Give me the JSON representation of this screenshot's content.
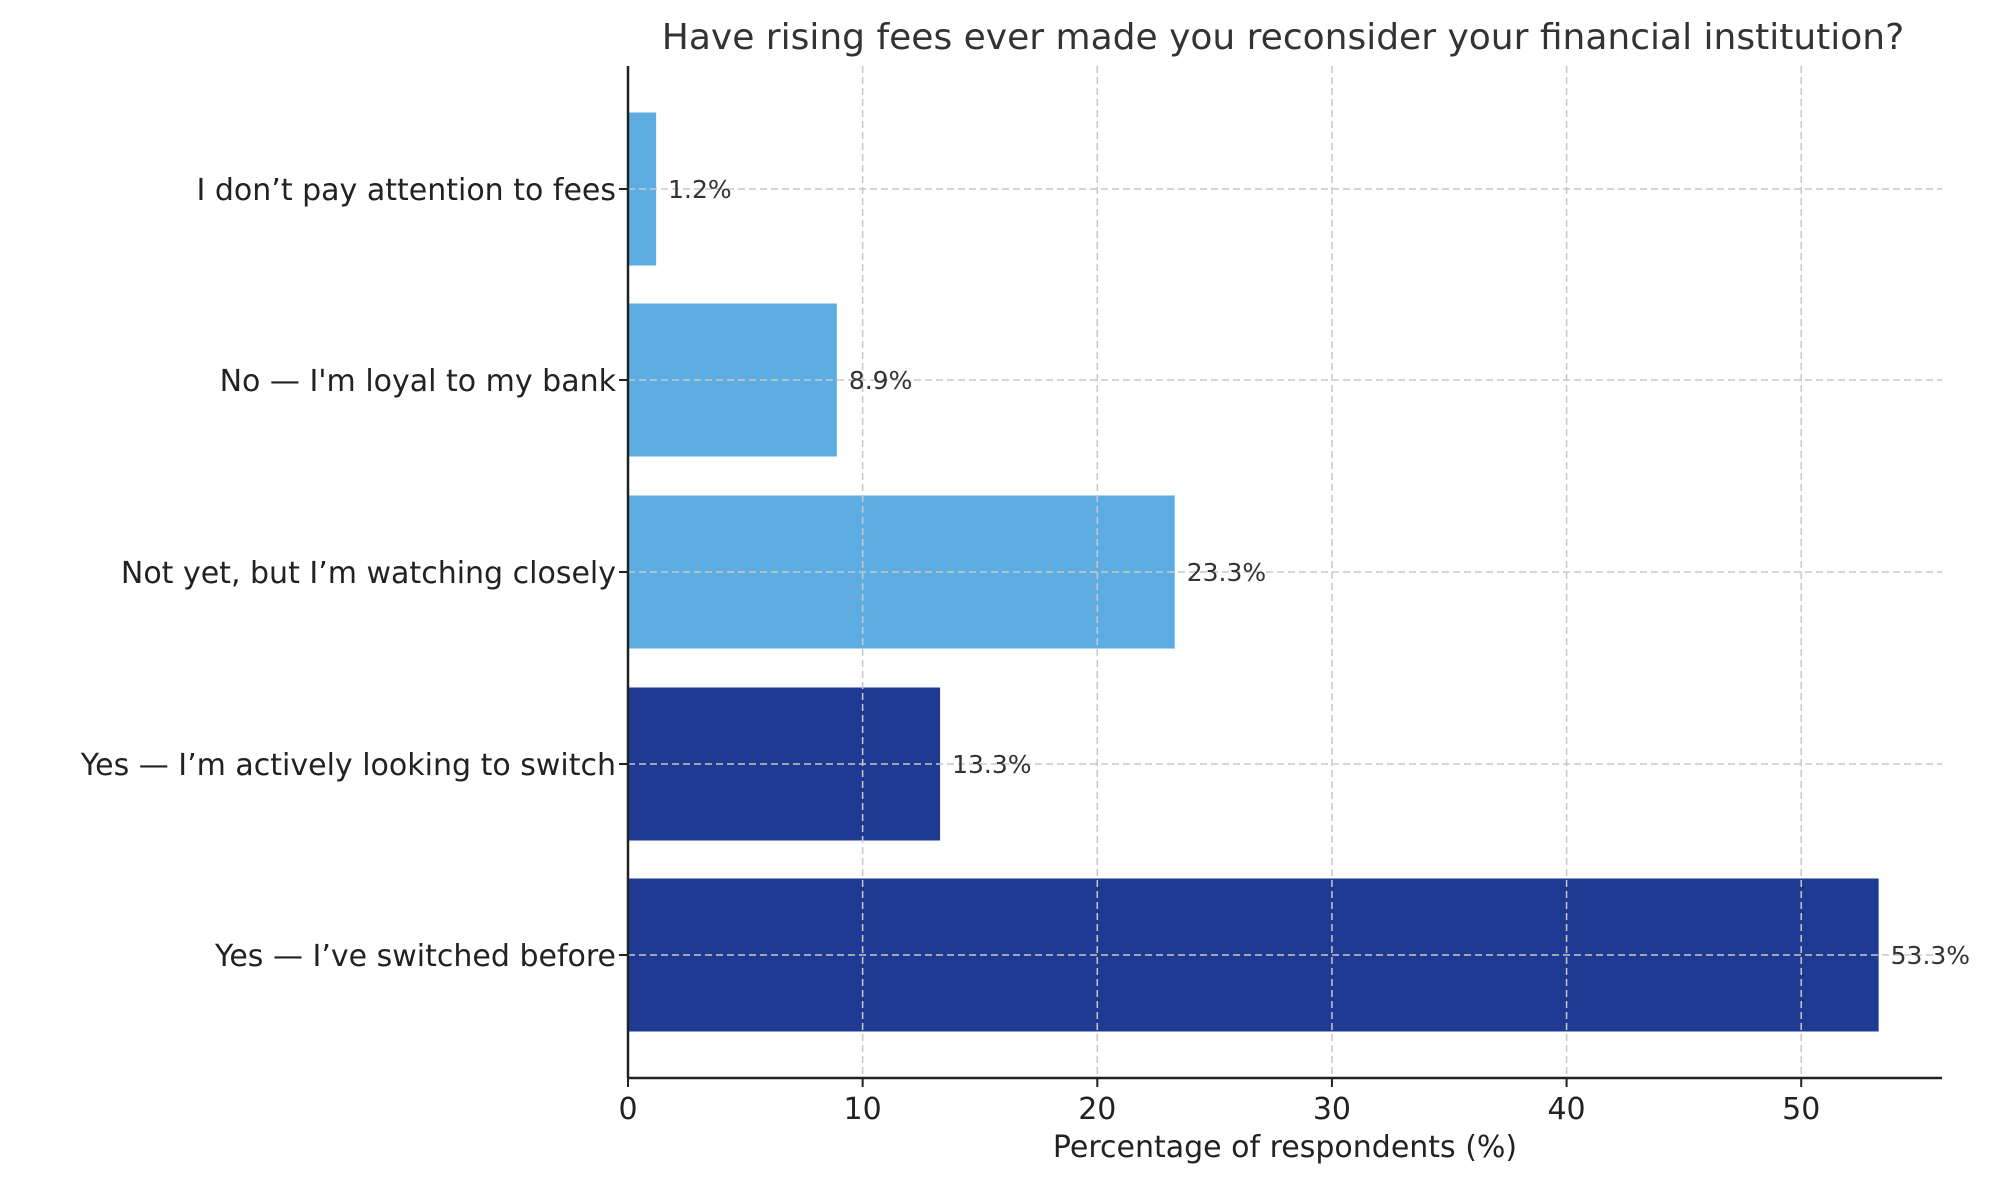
{
  "chart_data": {
    "type": "bar",
    "orientation": "horizontal",
    "title": "Have rising fees ever made you reconsider your financial institution?",
    "xlabel": "Percentage of respondents (%)",
    "ylabel": "",
    "categories": [
      "I don’t pay attention to fees",
      "No — I'm loyal to my bank",
      "Not yet, but I’m watching closely",
      "Yes — I’m actively looking to switch",
      "Yes — I’ve switched before"
    ],
    "values": [
      1.2,
      8.9,
      23.3,
      13.3,
      53.3
    ],
    "data_labels": [
      "1.2%",
      "8.9%",
      "23.3%",
      "13.3%",
      "53.3%"
    ],
    "colors": [
      "#5DADE2",
      "#5DADE2",
      "#5DADE2",
      "#1F3A93",
      "#1F3A93"
    ],
    "xlim": [
      0,
      56
    ],
    "xticks": [
      "0",
      "10",
      "20",
      "30",
      "40",
      "50"
    ],
    "grid": true
  }
}
